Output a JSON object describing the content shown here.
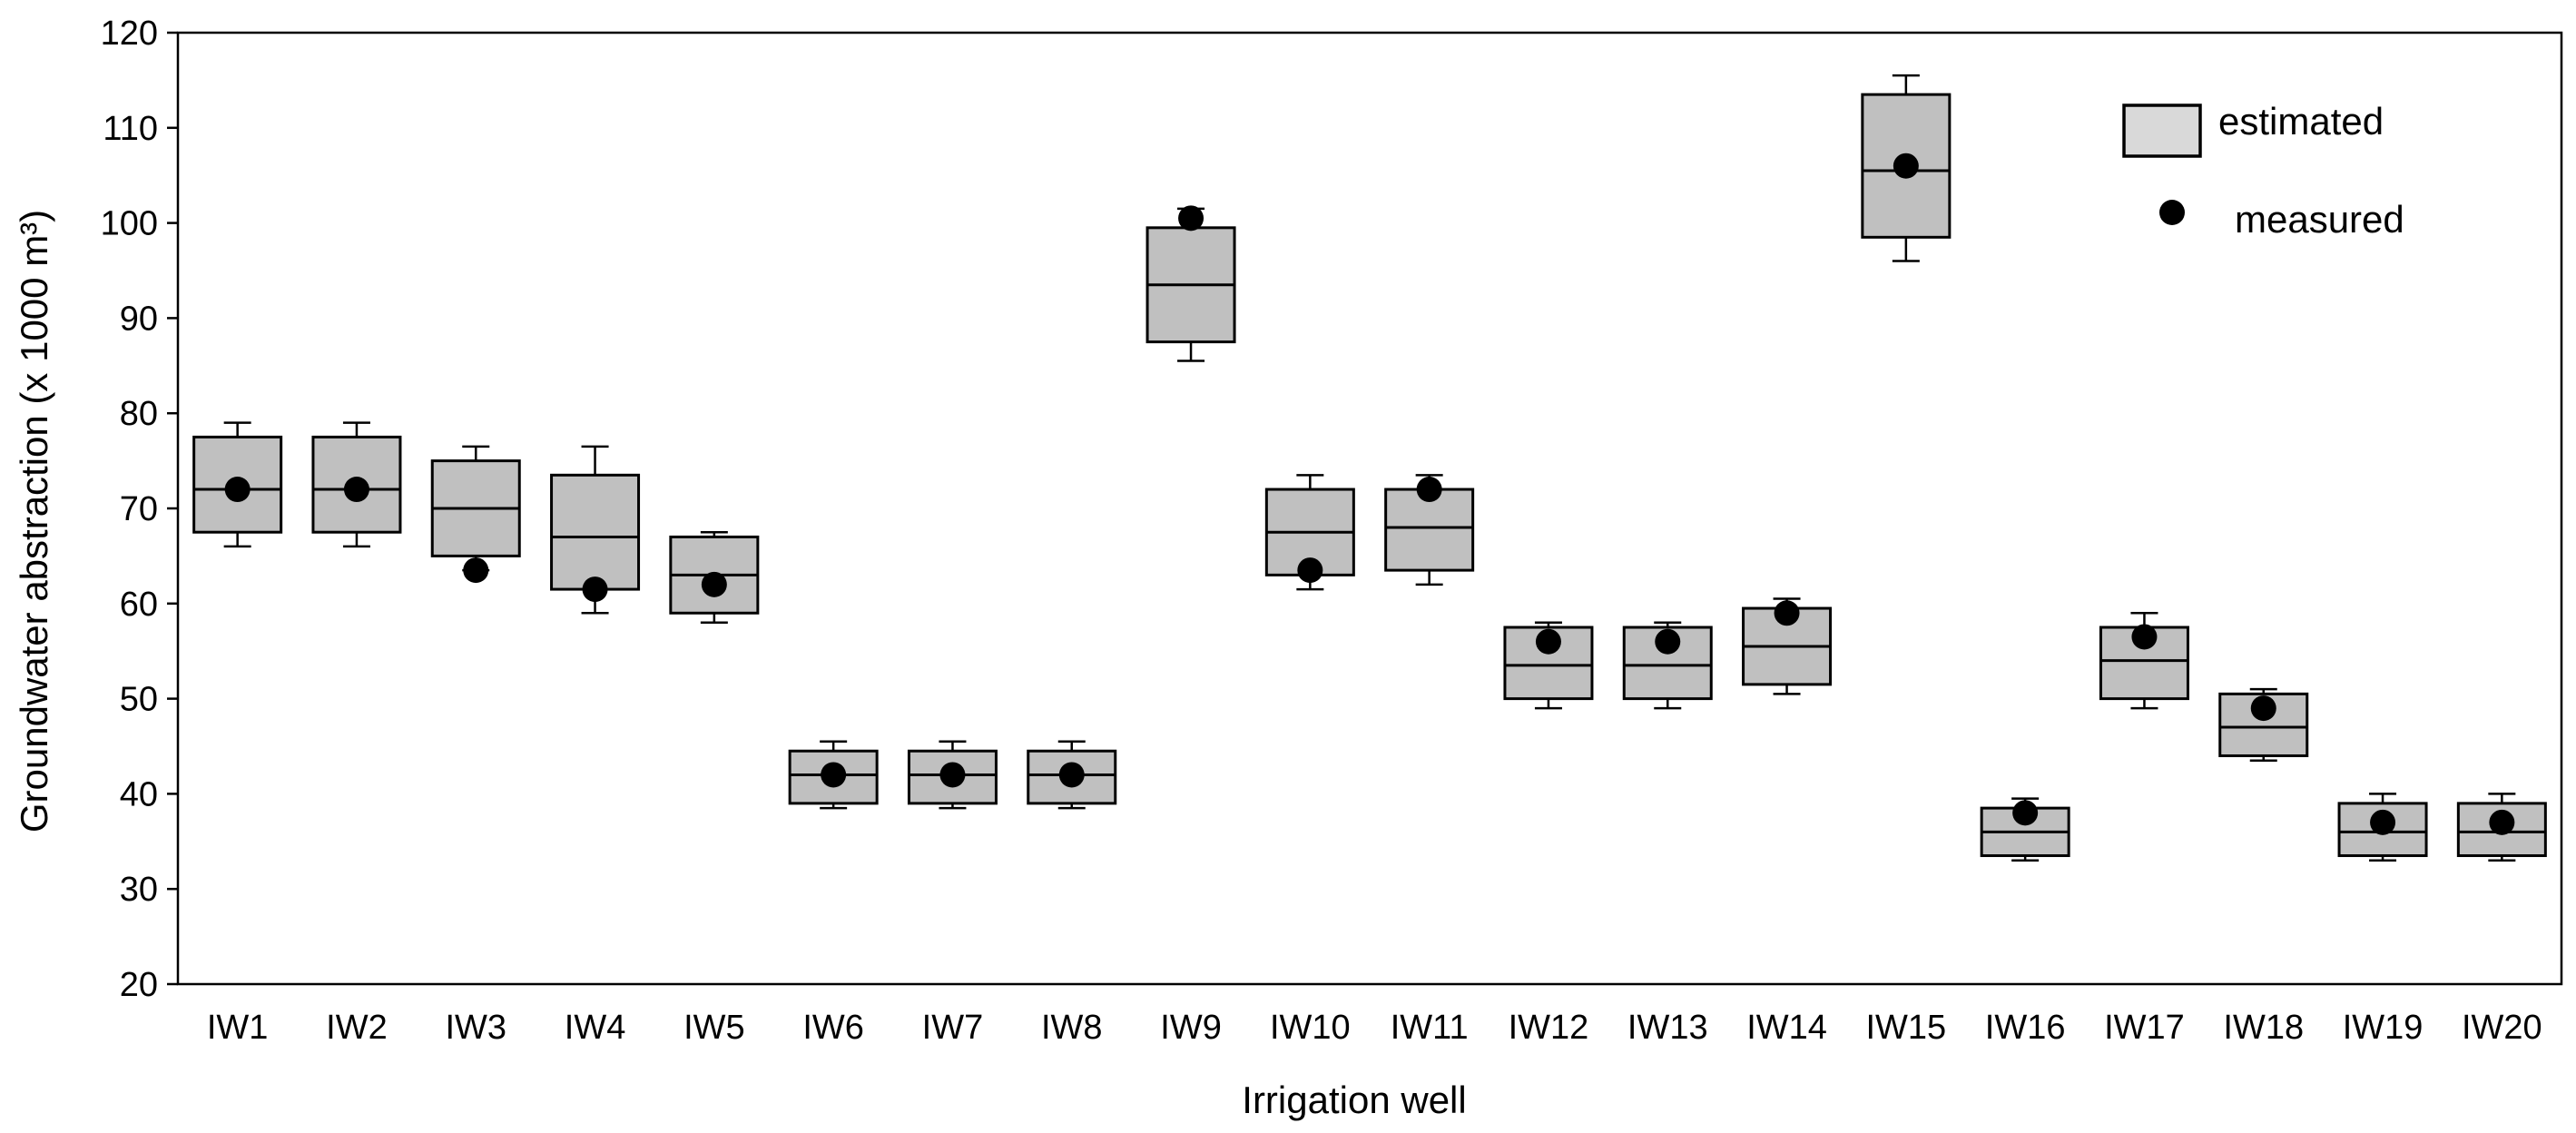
{
  "chart_data": {
    "type": "boxplot",
    "title": "",
    "xlabel": "Irrigation well",
    "ylabel": "Groundwater abstraction (x 1000 m³)",
    "ylim": [
      20,
      120
    ],
    "yticks": [
      20,
      30,
      40,
      50,
      60,
      70,
      80,
      90,
      100,
      110,
      120
    ],
    "grid": false,
    "legend_position": "top-right",
    "colors": {
      "box_fill": "#c0c0c0",
      "legend_box_fill": "#d9d9d9",
      "stroke": "#000000",
      "marker": "#000000"
    },
    "legend": [
      {
        "label": "estimated",
        "symbol": "box"
      },
      {
        "label": "measured",
        "symbol": "dot"
      }
    ],
    "categories": [
      "IW1",
      "IW2",
      "IW3",
      "IW4",
      "IW5",
      "IW6",
      "IW7",
      "IW8",
      "IW9",
      "IW10",
      "IW11",
      "IW12",
      "IW13",
      "IW14",
      "IW15",
      "IW16",
      "IW17",
      "IW18",
      "IW19",
      "IW20"
    ],
    "series": [
      {
        "name": "estimated",
        "boxes": [
          {
            "whisker_low": 66.0,
            "q1": 67.5,
            "median": 72.0,
            "q3": 77.5,
            "whisker_high": 79.0
          },
          {
            "whisker_low": 66.0,
            "q1": 67.5,
            "median": 72.0,
            "q3": 77.5,
            "whisker_high": 79.0
          },
          {
            "whisker_low": 63.5,
            "q1": 65.0,
            "median": 70.0,
            "q3": 75.0,
            "whisker_high": 76.5
          },
          {
            "whisker_low": 59.0,
            "q1": 61.5,
            "median": 67.0,
            "q3": 73.5,
            "whisker_high": 76.5
          },
          {
            "whisker_low": 58.0,
            "q1": 59.0,
            "median": 63.0,
            "q3": 67.0,
            "whisker_high": 67.5
          },
          {
            "whisker_low": 38.5,
            "q1": 39.0,
            "median": 42.0,
            "q3": 44.5,
            "whisker_high": 45.5
          },
          {
            "whisker_low": 38.5,
            "q1": 39.0,
            "median": 42.0,
            "q3": 44.5,
            "whisker_high": 45.5
          },
          {
            "whisker_low": 38.5,
            "q1": 39.0,
            "median": 42.0,
            "q3": 44.5,
            "whisker_high": 45.5
          },
          {
            "whisker_low": 85.5,
            "q1": 87.5,
            "median": 93.5,
            "q3": 99.5,
            "whisker_high": 101.5
          },
          {
            "whisker_low": 61.5,
            "q1": 63.0,
            "median": 67.5,
            "q3": 72.0,
            "whisker_high": 73.5
          },
          {
            "whisker_low": 62.0,
            "q1": 63.5,
            "median": 68.0,
            "q3": 72.0,
            "whisker_high": 73.5
          },
          {
            "whisker_low": 49.0,
            "q1": 50.0,
            "median": 53.5,
            "q3": 57.5,
            "whisker_high": 58.0
          },
          {
            "whisker_low": 49.0,
            "q1": 50.0,
            "median": 53.5,
            "q3": 57.5,
            "whisker_high": 58.0
          },
          {
            "whisker_low": 50.5,
            "q1": 51.5,
            "median": 55.5,
            "q3": 59.5,
            "whisker_high": 60.5
          },
          {
            "whisker_low": 96.0,
            "q1": 98.5,
            "median": 105.5,
            "q3": 113.5,
            "whisker_high": 115.5
          },
          {
            "whisker_low": 33.0,
            "q1": 33.5,
            "median": 36.0,
            "q3": 38.5,
            "whisker_high": 39.5
          },
          {
            "whisker_low": 49.0,
            "q1": 50.0,
            "median": 54.0,
            "q3": 57.5,
            "whisker_high": 59.0
          },
          {
            "whisker_low": 43.5,
            "q1": 44.0,
            "median": 47.0,
            "q3": 50.5,
            "whisker_high": 51.0
          },
          {
            "whisker_low": 33.0,
            "q1": 33.5,
            "median": 36.0,
            "q3": 39.0,
            "whisker_high": 40.0
          },
          {
            "whisker_low": 33.0,
            "q1": 33.5,
            "median": 36.0,
            "q3": 39.0,
            "whisker_high": 40.0
          }
        ]
      },
      {
        "name": "measured",
        "values": [
          72.0,
          72.0,
          63.5,
          61.5,
          62.0,
          42.0,
          42.0,
          42.0,
          100.5,
          63.5,
          72.0,
          56.0,
          56.0,
          59.0,
          106.0,
          38.0,
          56.5,
          49.0,
          37.0,
          37.0
        ]
      }
    ]
  }
}
